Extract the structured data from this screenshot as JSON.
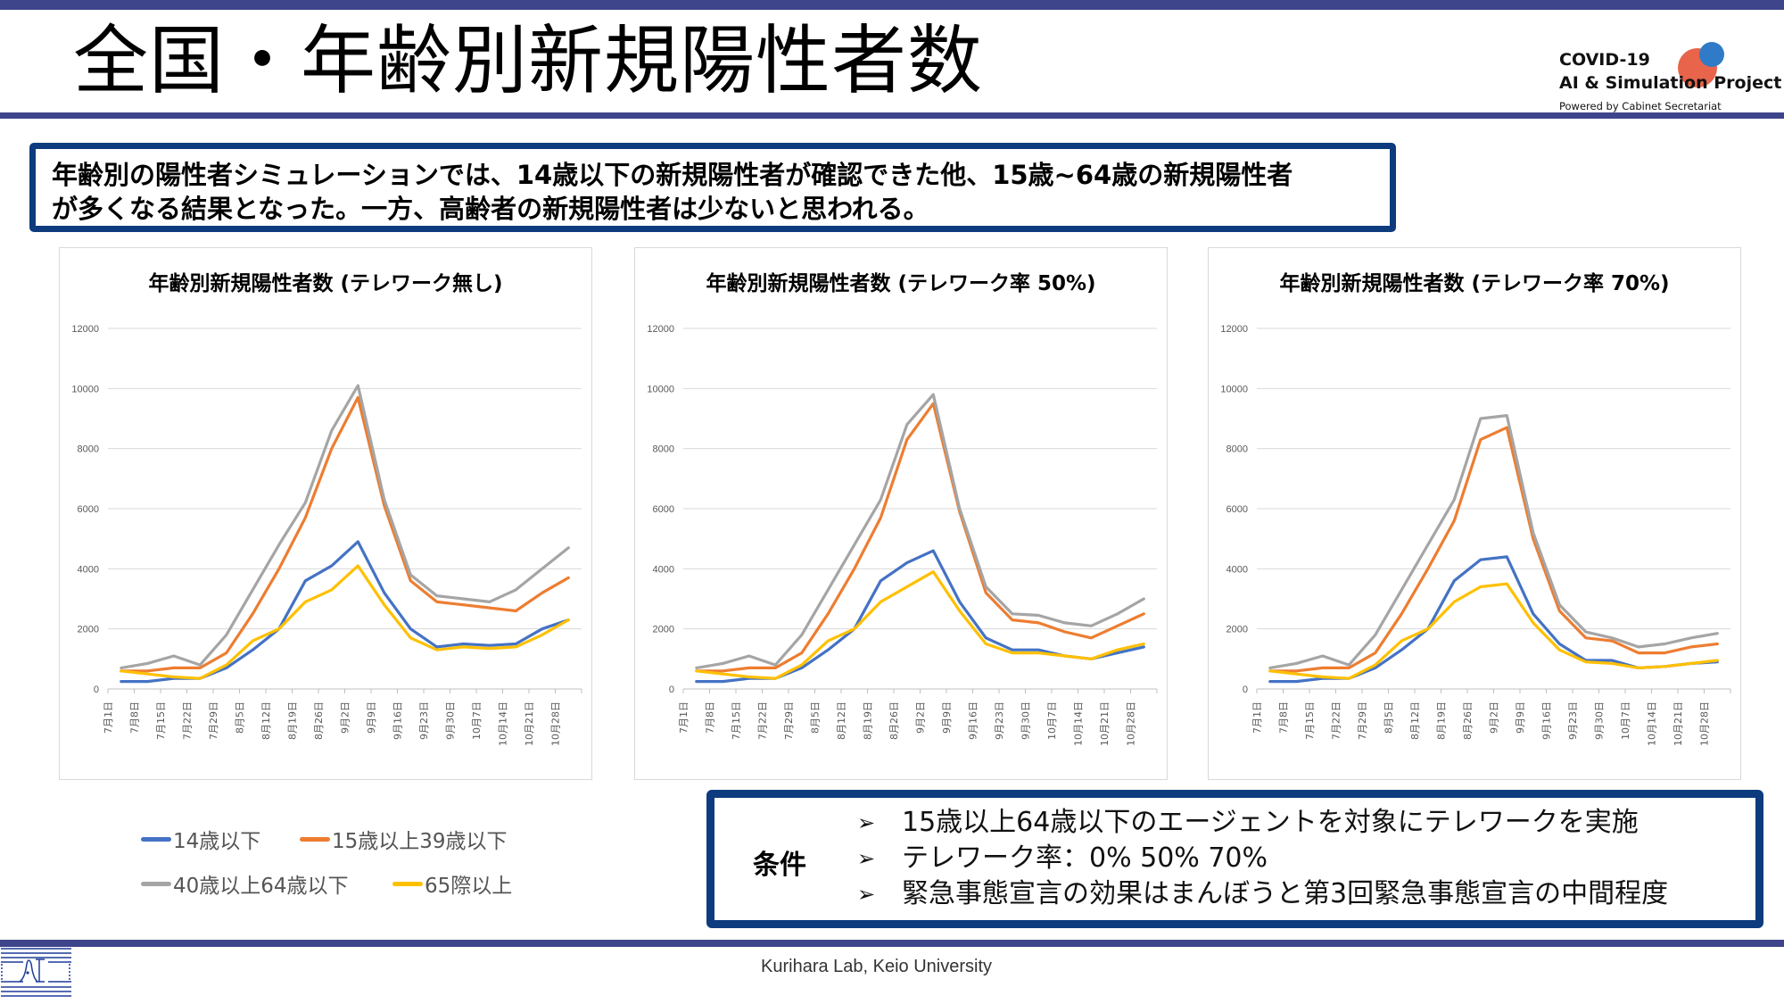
{
  "page": {
    "title": "全国・年齢別新規陽性者数",
    "colors": {
      "band": "#3f458b",
      "box_border": "#0d3b7d"
    }
  },
  "logo": {
    "line1": "COVID-19",
    "line2": "AI & Simulation Project",
    "line3": "Powered by Cabinet Secretariat"
  },
  "summary": {
    "line1": "年齢別の陽性者シミュレーションでは、14歳以下の新規陽性者が確認できた他、15歳~64歳の新規陽性者",
    "line2": "が多くなる結果となった。一方、高齢者の新規陽性者は少ないと思われる。"
  },
  "legend": [
    {
      "label": "14歳以下",
      "color": "#4472c4"
    },
    {
      "label": "15歳以上39歳以下",
      "color": "#ed7d31"
    },
    {
      "label": "40歳以上64歳以下",
      "color": "#a5a5a5"
    },
    {
      "label": "65際以上",
      "color": "#ffc000"
    }
  ],
  "conditions": {
    "label": "条件",
    "bullet_icon": "➢",
    "items": [
      "15歳以上64歳以下のエージェントを対象にテレワークを実施",
      "テレワーク率：0%  50%  70%",
      "緊急事態宣言の効果はまんぼうと第3回緊急事態宣言の中間程度"
    ]
  },
  "footer": {
    "text": "Kurihara Lab, Keio University"
  },
  "chart_data": [
    {
      "type": "line",
      "title": "年齢別新規陽性者数 (テレワーク無し)",
      "xlabel": "",
      "ylabel": "",
      "ylim": [
        0,
        12000
      ],
      "yticks": [
        "0",
        "2000",
        "4000",
        "6000",
        "8000",
        "10000",
        "12000"
      ],
      "grid": true,
      "legend": "bottom-left",
      "categories": [
        "7月1日",
        "7月8日",
        "7月15日",
        "7月22日",
        "7月29日",
        "8月5日",
        "8月12日",
        "8月19日",
        "8月26日",
        "9月2日",
        "9月9日",
        "9月16日",
        "9月23日",
        "9月30日",
        "10月7日",
        "10月14日",
        "10月21日",
        "10月28日"
      ],
      "series": [
        {
          "name": "14歳以下",
          "color": "#4472c4",
          "values": [
            250,
            250,
            350,
            350,
            700,
            1300,
            2000,
            3600,
            4100,
            4900,
            3200,
            2000,
            1400,
            1500,
            1450,
            1500,
            2000,
            2300
          ]
        },
        {
          "name": "15歳以上39歳以下",
          "color": "#ed7d31",
          "values": [
            600,
            600,
            700,
            700,
            1200,
            2500,
            4000,
            5700,
            8000,
            9700,
            6100,
            3600,
            2900,
            2800,
            2700,
            2600,
            3200,
            3700
          ]
        },
        {
          "name": "40歳以上64歳以下",
          "color": "#a5a5a5",
          "values": [
            700,
            850,
            1100,
            800,
            1800,
            3300,
            4800,
            6200,
            8600,
            10100,
            6300,
            3800,
            3100,
            3000,
            2900,
            3300,
            4000,
            4700
          ]
        },
        {
          "name": "65際以上",
          "color": "#ffc000",
          "values": [
            600,
            500,
            400,
            350,
            800,
            1600,
            2000,
            2900,
            3300,
            4100,
            2800,
            1700,
            1300,
            1400,
            1350,
            1400,
            1800,
            2300
          ]
        }
      ]
    },
    {
      "type": "line",
      "title": "年齢別新規陽性者数 (テレワーク率 50%)",
      "xlabel": "",
      "ylabel": "",
      "ylim": [
        0,
        12000
      ],
      "yticks": [
        "0",
        "2000",
        "4000",
        "6000",
        "8000",
        "10000",
        "12000"
      ],
      "grid": true,
      "legend": "bottom-left",
      "categories": [
        "7月1日",
        "7月8日",
        "7月15日",
        "7月22日",
        "7月29日",
        "8月5日",
        "8月12日",
        "8月19日",
        "8月26日",
        "9月2日",
        "9月9日",
        "9月16日",
        "9月23日",
        "9月30日",
        "10月7日",
        "10月14日",
        "10月21日",
        "10月28日"
      ],
      "series": [
        {
          "name": "14歳以下",
          "color": "#4472c4",
          "values": [
            250,
            250,
            350,
            350,
            700,
            1300,
            2000,
            3600,
            4200,
            4600,
            2900,
            1700,
            1300,
            1300,
            1100,
            1000,
            1200,
            1400
          ]
        },
        {
          "name": "15歳以上39歳以下",
          "color": "#ed7d31",
          "values": [
            600,
            600,
            700,
            700,
            1200,
            2500,
            4000,
            5700,
            8300,
            9500,
            5900,
            3200,
            2300,
            2200,
            1900,
            1700,
            2100,
            2500
          ]
        },
        {
          "name": "40歳以上64歳以下",
          "color": "#a5a5a5",
          "values": [
            700,
            850,
            1100,
            800,
            1800,
            3300,
            4800,
            6300,
            8800,
            9800,
            6000,
            3400,
            2500,
            2450,
            2200,
            2100,
            2500,
            3000
          ]
        },
        {
          "name": "65際以上",
          "color": "#ffc000",
          "values": [
            600,
            500,
            400,
            350,
            800,
            1600,
            2000,
            2900,
            3400,
            3900,
            2600,
            1500,
            1200,
            1200,
            1100,
            1000,
            1300,
            1500
          ]
        }
      ]
    },
    {
      "type": "line",
      "title": "年齢別新規陽性者数 (テレワーク率 70%)",
      "xlabel": "",
      "ylabel": "",
      "ylim": [
        0,
        12000
      ],
      "yticks": [
        "0",
        "2000",
        "4000",
        "6000",
        "8000",
        "10000",
        "12000"
      ],
      "grid": true,
      "legend": "bottom-left",
      "categories": [
        "7月1日",
        "7月8日",
        "7月15日",
        "7月22日",
        "7月29日",
        "8月5日",
        "8月12日",
        "8月19日",
        "8月26日",
        "9月2日",
        "9月9日",
        "9月16日",
        "9月23日",
        "9月30日",
        "10月7日",
        "10月14日",
        "10月21日",
        "10月28日"
      ],
      "series": [
        {
          "name": "14歳以下",
          "color": "#4472c4",
          "values": [
            250,
            250,
            350,
            350,
            700,
            1300,
            2000,
            3600,
            4300,
            4400,
            2500,
            1500,
            950,
            950,
            700,
            750,
            850,
            900
          ]
        },
        {
          "name": "15歳以上39歳以下",
          "color": "#ed7d31",
          "values": [
            600,
            600,
            700,
            700,
            1200,
            2500,
            4000,
            5600,
            8300,
            8700,
            5000,
            2600,
            1700,
            1600,
            1200,
            1200,
            1400,
            1500
          ]
        },
        {
          "name": "40歳以上64歳以下",
          "color": "#a5a5a5",
          "values": [
            700,
            850,
            1100,
            800,
            1800,
            3300,
            4800,
            6300,
            9000,
            9100,
            5200,
            2800,
            1900,
            1700,
            1400,
            1500,
            1700,
            1850
          ]
        },
        {
          "name": "65際以上",
          "color": "#ffc000",
          "values": [
            600,
            500,
            400,
            350,
            800,
            1600,
            2000,
            2900,
            3400,
            3500,
            2200,
            1300,
            900,
            850,
            700,
            750,
            850,
            950
          ]
        }
      ]
    }
  ]
}
